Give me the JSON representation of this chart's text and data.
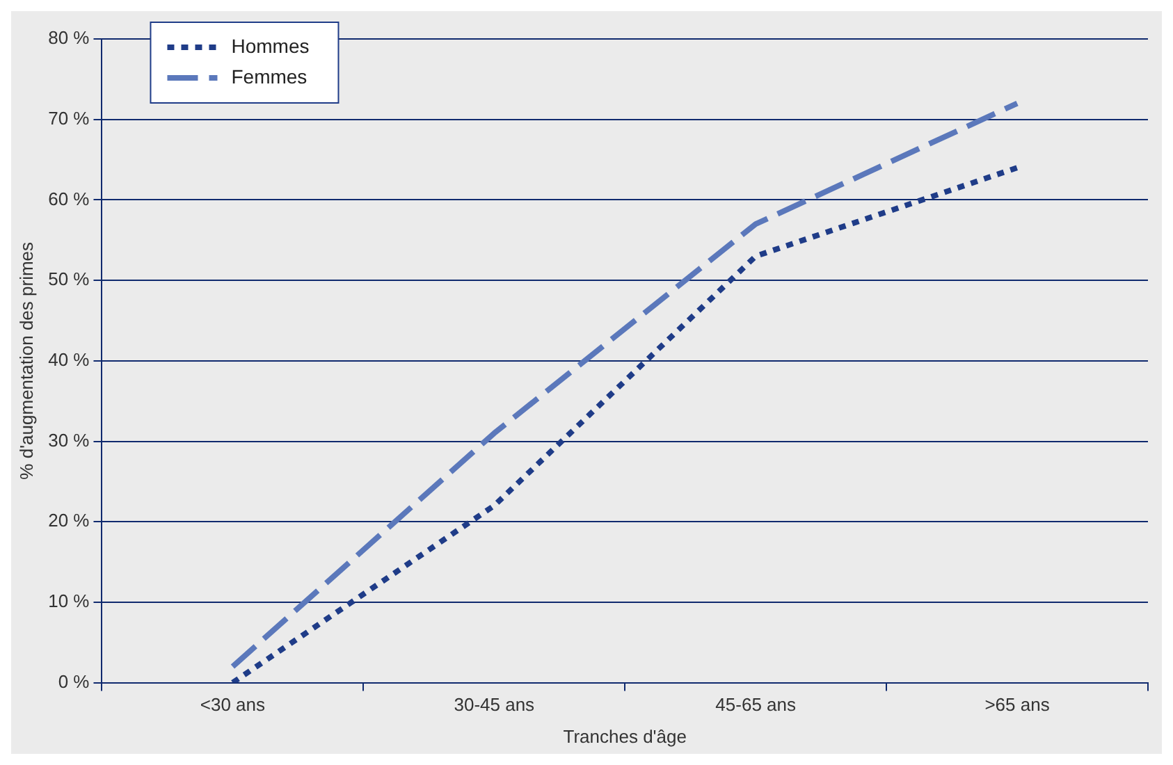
{
  "chart_data": {
    "type": "line",
    "xlabel": "Tranches d'âge",
    "ylabel": "% d'augmentation des primes",
    "categories": [
      "<30 ans",
      "30-45 ans",
      "45-65 ans",
      ">65 ans"
    ],
    "series": [
      {
        "name": "Hommes",
        "color": "#1f3c88",
        "values": [
          0,
          22,
          53,
          64
        ],
        "line_style": "dotted"
      },
      {
        "name": "Femmes",
        "color": "#5b78bb",
        "values": [
          2,
          31,
          57,
          72
        ],
        "line_style": "dashed"
      }
    ],
    "ylim": [
      0,
      80
    ],
    "yticks": [
      {
        "value": 0,
        "label": "0 %"
      },
      {
        "value": 10,
        "label": "10 %"
      },
      {
        "value": 20,
        "label": "20 %"
      },
      {
        "value": 30,
        "label": "30 %"
      },
      {
        "value": 40,
        "label": "40 %"
      },
      {
        "value": 50,
        "label": "50 %"
      },
      {
        "value": 60,
        "label": "60 %"
      },
      {
        "value": 70,
        "label": "70 %"
      },
      {
        "value": 80,
        "label": "80 %"
      }
    ],
    "grid": "y",
    "legend": "top left",
    "marker": "none"
  }
}
